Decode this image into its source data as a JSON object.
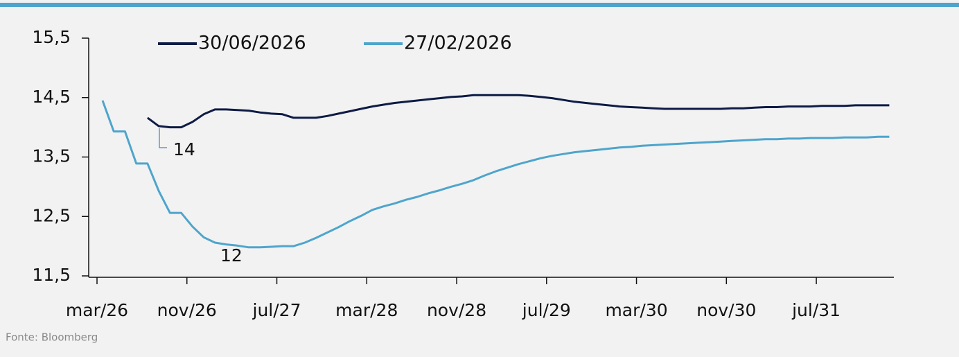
{
  "chart_data": {
    "type": "line",
    "categories": [
      "mar/26",
      null,
      null,
      null,
      null,
      null,
      null,
      null,
      "nov/26",
      null,
      null,
      null,
      null,
      null,
      null,
      null,
      "jul/27",
      null,
      null,
      null,
      null,
      null,
      null,
      null,
      "mar/28",
      null,
      null,
      null,
      null,
      null,
      null,
      null,
      "nov/28",
      null,
      null,
      null,
      null,
      null,
      null,
      null,
      "jul/29",
      null,
      null,
      null,
      null,
      null,
      null,
      null,
      "mar/30",
      null,
      null,
      null,
      null,
      null,
      null,
      null,
      "nov/30",
      null,
      null,
      null,
      null,
      null,
      null,
      null,
      "jul/31",
      null,
      null,
      null,
      null,
      null,
      null
    ],
    "series": [
      {
        "name": "30/06/2026",
        "color": "#0d1b45",
        "values": [
          null,
          null,
          null,
          null,
          14.16,
          14.02,
          14.0,
          14.0,
          14.09,
          14.22,
          14.3,
          14.3,
          14.29,
          14.28,
          14.25,
          14.23,
          14.22,
          14.16,
          14.16,
          14.16,
          14.19,
          14.23,
          14.27,
          14.31,
          14.35,
          14.38,
          14.41,
          14.43,
          14.45,
          14.47,
          14.49,
          14.51,
          14.52,
          14.54,
          14.54,
          14.54,
          14.54,
          14.54,
          14.53,
          14.51,
          14.49,
          14.46,
          14.43,
          14.41,
          14.39,
          14.37,
          14.35,
          14.34,
          14.33,
          14.32,
          14.31,
          14.31,
          14.31,
          14.31,
          14.31,
          14.31,
          14.32,
          14.32,
          14.33,
          14.34,
          14.34,
          14.35,
          14.35,
          14.35,
          14.36,
          14.36,
          14.36,
          14.37,
          14.37,
          14.37,
          14.37
        ]
      },
      {
        "name": "27/02/2026",
        "color": "#4ea5cc",
        "values": [
          14.45,
          13.93,
          13.93,
          13.39,
          13.39,
          12.93,
          12.56,
          12.56,
          12.33,
          12.15,
          12.06,
          12.03,
          12.01,
          11.98,
          11.98,
          11.99,
          12.0,
          12.0,
          12.06,
          12.14,
          12.23,
          12.32,
          12.42,
          12.51,
          12.61,
          12.67,
          12.72,
          12.78,
          12.83,
          12.89,
          12.94,
          13.0,
          13.05,
          13.11,
          13.19,
          13.26,
          13.32,
          13.38,
          13.43,
          13.48,
          13.52,
          13.55,
          13.58,
          13.6,
          13.62,
          13.64,
          13.66,
          13.67,
          13.69,
          13.7,
          13.71,
          13.72,
          13.73,
          13.74,
          13.75,
          13.76,
          13.77,
          13.78,
          13.79,
          13.8,
          13.8,
          13.81,
          13.81,
          13.82,
          13.82,
          13.82,
          13.83,
          13.83,
          13.83,
          13.84,
          13.84
        ]
      }
    ],
    "ylim": [
      11.5,
      15.5
    ],
    "yticks": [
      {
        "value": 11.5,
        "label": "11,5"
      },
      {
        "value": 12.5,
        "label": "12,5"
      },
      {
        "value": 13.5,
        "label": "13,5"
      },
      {
        "value": 14.5,
        "label": "14,5"
      },
      {
        "value": 15.5,
        "label": "15,5"
      }
    ],
    "annotations": [
      "14",
      "12"
    ],
    "legend": "top",
    "grid": false,
    "source": "Fonte: Bloomberg"
  }
}
